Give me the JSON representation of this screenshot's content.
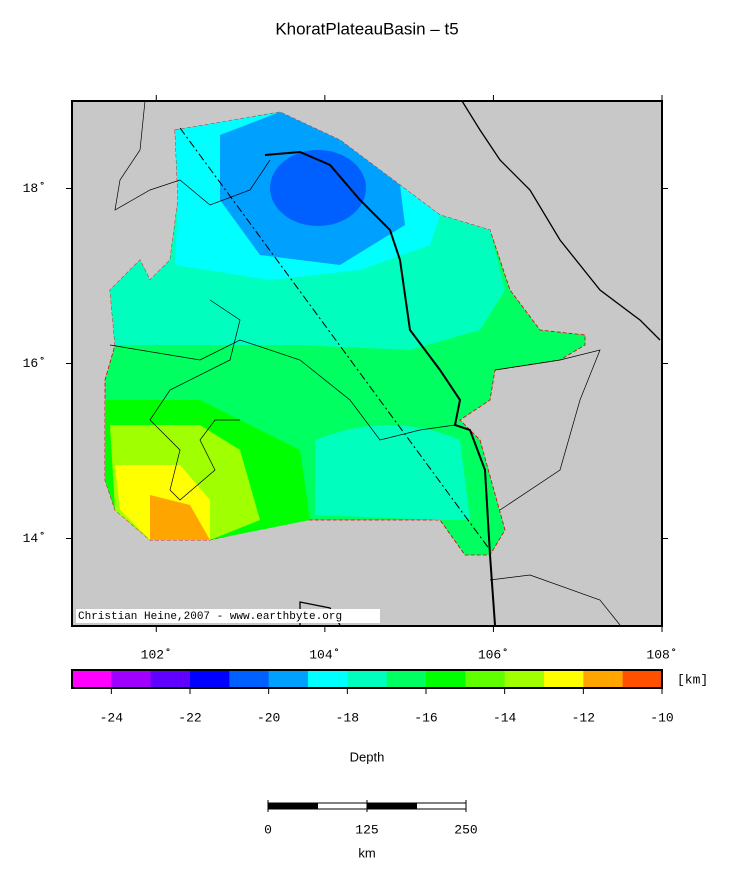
{
  "title": "KhoratPlateauBasin – t5",
  "map": {
    "credit": "Christian Heine,2007 - www.earthbyte.org",
    "xlim": [
      101,
      108
    ],
    "ylim": [
      13,
      19
    ],
    "xticks": [
      {
        "value": 102,
        "label": "102˚"
      },
      {
        "value": 104,
        "label": "104˚"
      },
      {
        "value": 106,
        "label": "106˚"
      },
      {
        "value": 108,
        "label": "108˚"
      }
    ],
    "yticks": [
      {
        "value": 14,
        "label": "14˚"
      },
      {
        "value": 16,
        "label": "16˚"
      },
      {
        "value": 18,
        "label": "18˚"
      }
    ]
  },
  "colorbar": {
    "unit": "[km]",
    "title": "Depth",
    "range": [
      -25,
      -10
    ],
    "ticks": [
      -24,
      -22,
      -20,
      -18,
      -16,
      -14,
      -12,
      -10
    ],
    "colors": [
      "#ff00ff",
      "#a000ff",
      "#6000ff",
      "#0000ff",
      "#0060ff",
      "#00a0ff",
      "#00ffff",
      "#00ffbf",
      "#00ff60",
      "#00ff00",
      "#60ff00",
      "#a0ff00",
      "#ffff00",
      "#ffa500",
      "#ff5000"
    ]
  },
  "scalebar": {
    "ticks": [
      0,
      125,
      250
    ],
    "unit": "km"
  }
}
